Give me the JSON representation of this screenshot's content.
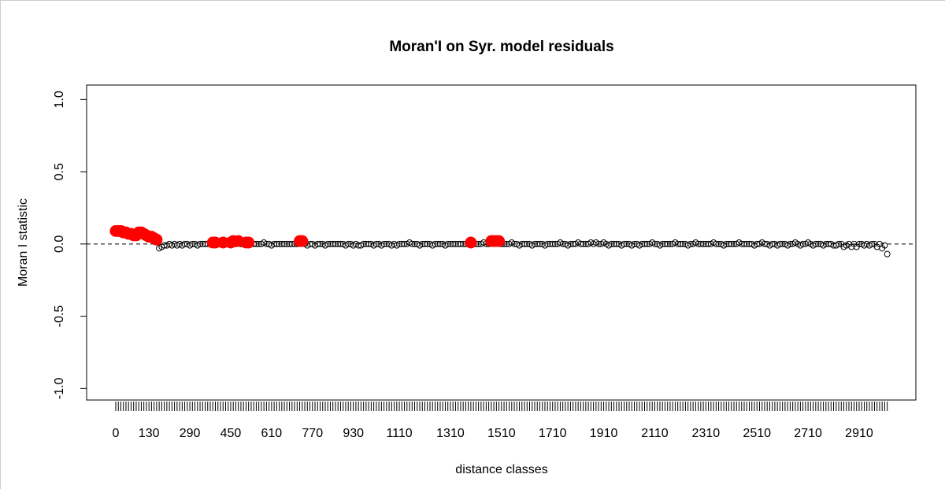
{
  "chart_data": {
    "type": "scatter",
    "title": "Moran'I on Syr. model residuals",
    "x_label": "distance classes",
    "y_label": "Moran I statistic",
    "xlim": [
      -114,
      3132
    ],
    "ylim": [
      -1.08,
      1.1
    ],
    "xticks": [
      0,
      130,
      290,
      450,
      610,
      770,
      930,
      1110,
      1310,
      1510,
      1710,
      1910,
      2110,
      2310,
      2510,
      2710,
      2910
    ],
    "yticks": [
      {
        "value": -1,
        "label": "-1.0"
      },
      {
        "value": -0.5,
        "label": "-0.5"
      },
      {
        "value": 0,
        "label": "0.0"
      },
      {
        "value": 0.5,
        "label": "0.5"
      },
      {
        "value": 1,
        "label": "1.0"
      }
    ],
    "reference_line": 0,
    "series": [
      {
        "color": "#000000",
        "filled": false,
        "x": [
          170,
          180,
          190,
          200,
          210,
          220,
          230,
          240,
          250,
          260,
          270,
          280,
          290,
          300,
          310,
          320,
          330,
          340,
          350,
          360,
          370,
          400,
          410,
          430,
          440,
          470,
          490,
          500,
          530,
          540,
          550,
          560,
          570,
          580,
          590,
          600,
          610,
          620,
          630,
          640,
          650,
          660,
          670,
          680,
          690,
          700,
          710,
          740,
          750,
          760,
          770,
          780,
          790,
          800,
          810,
          820,
          830,
          840,
          850,
          860,
          870,
          880,
          890,
          900,
          910,
          920,
          930,
          940,
          950,
          960,
          970,
          980,
          990,
          1000,
          1010,
          1020,
          1030,
          1040,
          1050,
          1060,
          1070,
          1080,
          1090,
          1100,
          1110,
          1120,
          1130,
          1140,
          1150,
          1160,
          1170,
          1180,
          1190,
          1200,
          1210,
          1220,
          1230,
          1240,
          1250,
          1260,
          1270,
          1280,
          1290,
          1300,
          1310,
          1320,
          1330,
          1340,
          1350,
          1360,
          1370,
          1380,
          1400,
          1410,
          1420,
          1430,
          1440,
          1450,
          1460,
          1510,
          1520,
          1530,
          1540,
          1550,
          1560,
          1570,
          1580,
          1590,
          1600,
          1610,
          1620,
          1630,
          1640,
          1650,
          1660,
          1670,
          1680,
          1690,
          1700,
          1710,
          1720,
          1730,
          1740,
          1750,
          1760,
          1770,
          1780,
          1790,
          1800,
          1810,
          1820,
          1830,
          1840,
          1850,
          1860,
          1870,
          1880,
          1890,
          1900,
          1910,
          1920,
          1930,
          1940,
          1950,
          1960,
          1970,
          1980,
          1990,
          2000,
          2010,
          2020,
          2030,
          2040,
          2050,
          2060,
          2070,
          2080,
          2090,
          2100,
          2110,
          2120,
          2130,
          2140,
          2150,
          2160,
          2170,
          2180,
          2190,
          2200,
          2210,
          2220,
          2230,
          2240,
          2250,
          2260,
          2270,
          2280,
          2290,
          2300,
          2310,
          2320,
          2330,
          2340,
          2350,
          2360,
          2370,
          2380,
          2390,
          2400,
          2410,
          2420,
          2430,
          2440,
          2450,
          2460,
          2470,
          2480,
          2490,
          2500,
          2510,
          2520,
          2530,
          2540,
          2550,
          2560,
          2570,
          2580,
          2590,
          2600,
          2610,
          2620,
          2630,
          2640,
          2650,
          2660,
          2670,
          2680,
          2690,
          2700,
          2710,
          2720,
          2730,
          2740,
          2750,
          2760,
          2770,
          2780,
          2790,
          2800,
          2810,
          2820,
          2830,
          2840,
          2850,
          2860,
          2870,
          2880,
          2890,
          2900,
          2910,
          2920,
          2930,
          2940,
          2950,
          2960,
          2970,
          2980,
          2990,
          3000,
          3010,
          3020
        ],
        "values": [
          -0.03,
          -0.02,
          -0.01,
          -0.01,
          0,
          -0.01,
          0,
          -0.01,
          0,
          -0.01,
          0,
          0,
          -0.01,
          0,
          0,
          -0.01,
          0,
          0,
          0,
          0,
          0,
          0,
          0,
          0,
          0.01,
          0,
          0,
          0,
          0,
          0,
          0,
          0,
          0,
          0.01,
          0,
          0,
          -0.01,
          0,
          0,
          0,
          0,
          0,
          0,
          0,
          0,
          0,
          0,
          0,
          -0.01,
          0,
          0,
          -0.01,
          0,
          0,
          0,
          -0.01,
          0,
          0,
          0,
          0,
          0,
          0,
          0,
          -0.01,
          0,
          0,
          -0.01,
          0,
          -0.01,
          -0.01,
          0,
          0,
          0,
          0,
          -0.01,
          0,
          0,
          -0.01,
          0,
          0,
          0,
          -0.01,
          0,
          -0.01,
          0,
          0,
          0,
          0,
          0.01,
          0,
          0,
          0,
          -0.01,
          0,
          0,
          0,
          0,
          -0.01,
          0,
          0,
          0,
          0,
          -0.01,
          0,
          0,
          0,
          0,
          0,
          0,
          0,
          0,
          0,
          0,
          0,
          0,
          0,
          0.01,
          0,
          0,
          0,
          0,
          0,
          0,
          0.01,
          0,
          0,
          -0.01,
          0,
          0,
          0,
          0,
          -0.01,
          0,
          0,
          0,
          0,
          -0.01,
          0,
          0,
          0,
          0,
          0,
          0.01,
          0,
          0,
          -0.01,
          0,
          0,
          0,
          0.01,
          0,
          0,
          0,
          0,
          0.01,
          0,
          0.01,
          0,
          0,
          0.01,
          0,
          -0.01,
          0,
          0,
          0,
          0,
          -0.01,
          0,
          0,
          0,
          -0.01,
          0,
          0,
          -0.01,
          0,
          0,
          0,
          0,
          0.01,
          0,
          0,
          -0.01,
          0,
          0,
          0,
          0,
          0,
          0.01,
          0,
          0,
          0,
          0,
          -0.01,
          0,
          0,
          0.01,
          0,
          0,
          0,
          0,
          0,
          0,
          0.01,
          0,
          0,
          0,
          -0.01,
          0,
          0,
          0,
          0,
          0,
          0.01,
          0,
          0,
          0,
          0,
          0,
          -0.01,
          0,
          0,
          0.01,
          0,
          0,
          -0.01,
          0,
          0,
          -0.01,
          0,
          0,
          0,
          -0.01,
          0,
          0,
          0.01,
          0,
          -0.01,
          0,
          0,
          0.01,
          0,
          -0.01,
          0,
          0,
          0,
          -0.01,
          0,
          0,
          0,
          -0.01,
          -0.01,
          0,
          0,
          -0.02,
          -0.01,
          0,
          -0.02,
          0,
          -0.02,
          0,
          0,
          -0.01,
          0,
          -0.01,
          0,
          0,
          -0.02,
          0,
          -0.03,
          -0.01,
          -0.07
        ]
      },
      {
        "color": "#ff0000",
        "filled": true,
        "x": [
          0,
          10,
          20,
          30,
          40,
          50,
          60,
          70,
          80,
          90,
          100,
          110,
          120,
          130,
          140,
          150,
          160,
          380,
          390,
          420,
          450,
          460,
          480,
          510,
          520,
          720,
          730,
          1390,
          1470,
          1480,
          1490,
          1500
        ],
        "values": [
          0.09,
          0.09,
          0.09,
          0.08,
          0.08,
          0.07,
          0.07,
          0.06,
          0.06,
          0.08,
          0.08,
          0.07,
          0.06,
          0.05,
          0.05,
          0.04,
          0.03,
          0.01,
          0.01,
          0.01,
          0.01,
          0.02,
          0.02,
          0.01,
          0.01,
          0.02,
          0.02,
          0.01,
          0.02,
          0.02,
          0.02,
          0.02
        ]
      }
    ]
  }
}
